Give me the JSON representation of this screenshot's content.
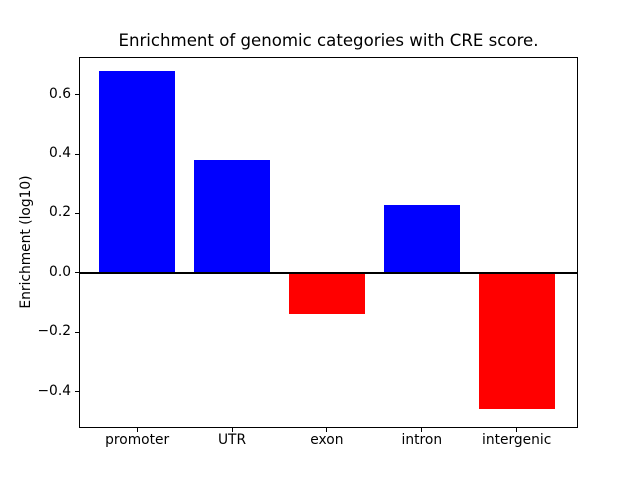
{
  "chart_data": {
    "type": "bar",
    "title": "Enrichment of genomic categories with CRE score.",
    "ylabel": "Enrichment (log10)",
    "xlabel": "",
    "categories": [
      "promoter",
      "UTR",
      "exon",
      "intron",
      "intergenic"
    ],
    "values": [
      0.68,
      0.38,
      -0.14,
      0.23,
      -0.46
    ],
    "bar_colors": [
      "#0000ff",
      "#0000ff",
      "#ff0000",
      "#0000ff",
      "#ff0000"
    ],
    "positive_color": "#0000ff",
    "negative_color": "#ff0000",
    "yticks": [
      0.6,
      0.4,
      0.2,
      0.0,
      -0.2,
      -0.4
    ],
    "ytick_labels": [
      "0.6",
      "0.4",
      "0.2",
      "0.0",
      "−0.2",
      "−0.4"
    ],
    "ylim": [
      -0.523,
      0.727
    ],
    "xlim": [
      -0.613,
      4.646
    ],
    "bar_rel_width": 0.8,
    "grid": false,
    "zero_line": true,
    "legend": "none",
    "axis_color": "#000000",
    "text_color": "#000000",
    "background": "#ffffff"
  }
}
